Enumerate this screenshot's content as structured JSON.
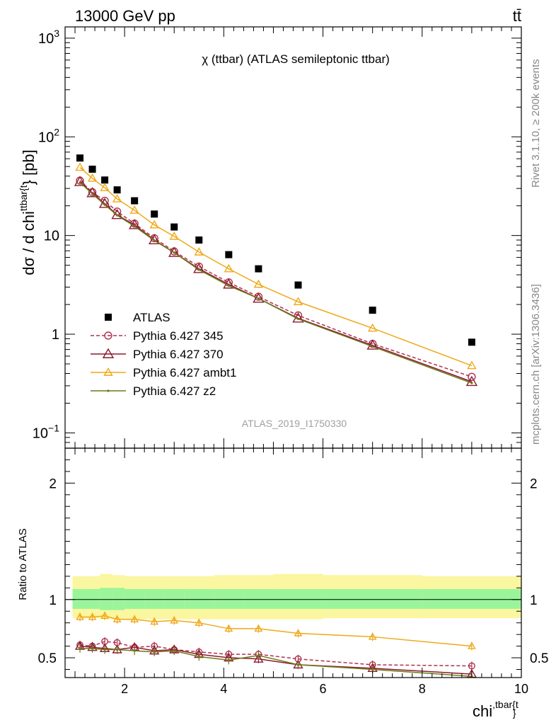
{
  "header": {
    "energy_label": "13000 GeV pp",
    "process_label": "tt̄"
  },
  "side_labels": {
    "rivet": "Rivet 3.1.10, ≥ 200k events",
    "mcplots": "mcplots.cern.ch [arXiv:1306.3436]"
  },
  "chart_data": [
    {
      "type": "scatter",
      "panel": "main",
      "title": "χ (ttbar) (ATLAS semileptonic ttbar)",
      "ylabel": "dσ / d chi^{ttbar{t}} [pb]",
      "ylabel_parts": {
        "prefix": "dσ / d chi",
        "sup": "ttbar{t",
        "suffix": "} [pb]"
      },
      "yscale": "log",
      "xlim": [
        0.8,
        10
      ],
      "ylim": [
        0.07,
        1300
      ],
      "ytick_labels": [
        {
          "value": 1000,
          "base": "10",
          "exp": "3"
        },
        {
          "value": 100,
          "base": "10",
          "exp": "2"
        },
        {
          "value": 10,
          "base": "10",
          "exp": ""
        },
        {
          "value": 1,
          "base": "1",
          "exp": ""
        },
        {
          "value": 0.1,
          "base": "10",
          "exp": "−1"
        }
      ],
      "watermark": "ATLAS_2019_I1750330",
      "x": [
        1.1,
        1.35,
        1.6,
        1.85,
        2.2,
        2.6,
        3.0,
        3.5,
        4.1,
        4.7,
        5.5,
        7.0,
        9.0
      ],
      "series": [
        {
          "name": "ATLAS",
          "style": "data",
          "color": "#000000",
          "values": [
            61,
            47,
            36.5,
            29,
            22.5,
            16.5,
            12.2,
            9.0,
            6.4,
            4.6,
            3.15,
            1.75,
            0.83
          ]
        },
        {
          "name": "Pythia 6.427 345",
          "style": "dashed-circle",
          "color": "#b03050",
          "values": [
            36,
            27.5,
            22.5,
            17.5,
            13.2,
            9.4,
            6.9,
            4.85,
            3.35,
            2.4,
            1.55,
            0.8,
            0.37
          ]
        },
        {
          "name": "Pythia 6.427 370",
          "style": "solid-triangle",
          "color": "#8b1a2e",
          "values": [
            35,
            27,
            21,
            16.2,
            12.8,
            9.0,
            6.7,
            4.6,
            3.2,
            2.3,
            1.45,
            0.77,
            0.33
          ]
        },
        {
          "name": "Pythia 6.427 ambt1",
          "style": "solid-triangle-light",
          "color": "#f0a818",
          "values": [
            49,
            38,
            30.5,
            23.5,
            18,
            12.8,
            9.8,
            6.8,
            4.6,
            3.2,
            2.13,
            1.15,
            0.48
          ]
        },
        {
          "name": "Pythia 6.427 z2",
          "style": "solid-dot",
          "color": "#6b7a18",
          "values": [
            34.5,
            26.5,
            20.5,
            16,
            12.4,
            8.9,
            6.7,
            4.5,
            3.1,
            2.3,
            1.43,
            0.75,
            0.32
          ]
        }
      ]
    },
    {
      "type": "line",
      "panel": "ratio",
      "ylabel": "Ratio to ATLAS",
      "xlabel": "chi^{ttbar{t}}",
      "xlabel_parts": {
        "base": "chi",
        "sup": ",tbar{t",
        "sub": "}"
      },
      "xlim": [
        0.8,
        10
      ],
      "ylim": [
        0.33,
        2.3
      ],
      "xtick_labels": [
        "2",
        "4",
        "6",
        "8",
        "10"
      ],
      "ytick_labels": [
        "0.5",
        "1",
        "2"
      ],
      "xtick_values": [
        2,
        4,
        6,
        8,
        10
      ],
      "ytick_values": [
        0.5,
        1,
        2
      ],
      "x": [
        1.1,
        1.35,
        1.6,
        1.85,
        2.2,
        2.6,
        3.0,
        3.5,
        4.1,
        4.7,
        5.5,
        7.0,
        9.0
      ],
      "band_edges": [
        0.95,
        1.25,
        1.5,
        1.75,
        2.0,
        2.4,
        2.8,
        3.2,
        3.8,
        4.4,
        5.0,
        6.0,
        8.0,
        10.0
      ],
      "band_inner_lo": [
        0.92,
        0.92,
        0.91,
        0.91,
        0.92,
        0.92,
        0.92,
        0.92,
        0.92,
        0.92,
        0.92,
        0.92,
        0.92
      ],
      "band_inner_hi": [
        1.09,
        1.09,
        1.1,
        1.1,
        1.09,
        1.09,
        1.09,
        1.09,
        1.09,
        1.09,
        1.09,
        1.09,
        1.09
      ],
      "band_outer_lo": [
        0.84,
        0.84,
        0.83,
        0.83,
        0.83,
        0.83,
        0.83,
        0.83,
        0.83,
        0.83,
        0.83,
        0.84,
        0.84
      ],
      "band_outer_hi": [
        1.2,
        1.2,
        1.22,
        1.21,
        1.2,
        1.2,
        1.2,
        1.2,
        1.21,
        1.21,
        1.22,
        1.21,
        1.2
      ],
      "series": [
        {
          "name": "Pythia 6.427 345",
          "style": "dashed-circle",
          "color": "#b03050",
          "values": [
            0.61,
            0.6,
            0.64,
            0.63,
            0.59,
            0.6,
            0.57,
            0.55,
            0.53,
            0.53,
            0.49,
            0.44,
            0.43
          ]
        },
        {
          "name": "Pythia 6.427 370",
          "style": "solid-triangle",
          "color": "#8b1a2e",
          "values": [
            0.6,
            0.59,
            0.58,
            0.57,
            0.59,
            0.56,
            0.57,
            0.53,
            0.5,
            0.49,
            0.44,
            0.41,
            0.36
          ]
        },
        {
          "name": "Pythia 6.427 ambt1",
          "style": "solid-triangle-light",
          "color": "#f0a818",
          "values": [
            0.85,
            0.85,
            0.86,
            0.83,
            0.83,
            0.81,
            0.82,
            0.8,
            0.75,
            0.75,
            0.71,
            0.68,
            0.6
          ]
        },
        {
          "name": "Pythia 6.427 z2",
          "style": "solid-dot",
          "color": "#6b7a18",
          "values": [
            0.58,
            0.58,
            0.57,
            0.57,
            0.56,
            0.55,
            0.56,
            0.51,
            0.48,
            0.52,
            0.44,
            0.4,
            0.34
          ]
        }
      ]
    }
  ]
}
